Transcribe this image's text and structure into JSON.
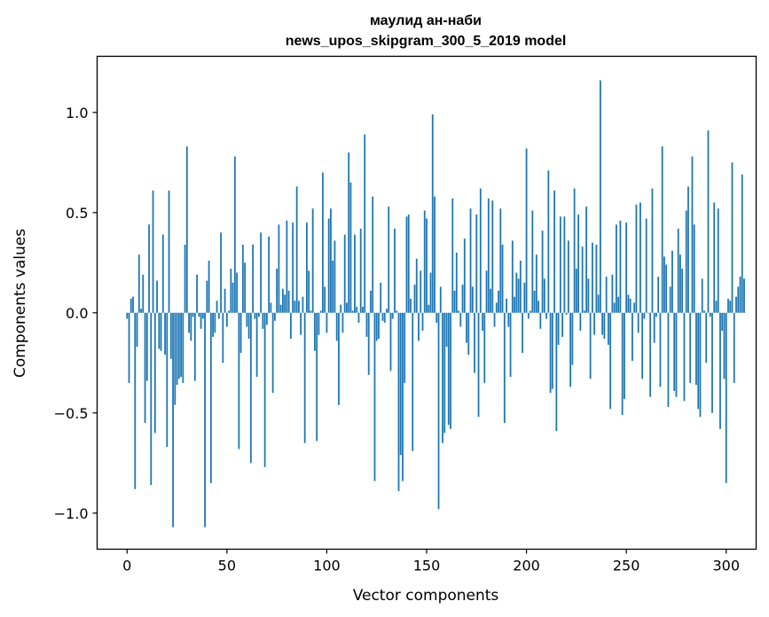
{
  "chart_data": {
    "type": "bar",
    "title": "маулид ан-наби",
    "subtitle": "news_upos_skipgram_300_5_2019 model",
    "xlabel": "Vector components",
    "ylabel": "Components values",
    "xlim": [
      -15,
      315
    ],
    "ylim": [
      -1.18,
      1.28
    ],
    "xticks": [
      0,
      50,
      100,
      150,
      200,
      250,
      300
    ],
    "yticks": [
      -1.0,
      -0.5,
      0.0,
      0.5,
      1.0
    ],
    "ytick_labels": [
      "−1.0",
      "−0.5",
      "0.0",
      "0.5",
      "1.0"
    ],
    "bar_color": "#1f77b4",
    "grid": false,
    "values": [
      -0.03,
      -0.35,
      0.07,
      0.08,
      -0.88,
      -0.17,
      0.29,
      0.02,
      0.19,
      -0.55,
      -0.34,
      0.44,
      -0.86,
      0.61,
      -0.6,
      0.16,
      -0.18,
      -0.19,
      0.39,
      -0.21,
      -0.67,
      0.61,
      -0.23,
      -1.07,
      -0.46,
      -0.36,
      -0.33,
      -0.32,
      -0.35,
      0.34,
      0.83,
      -0.1,
      -0.14,
      -0.02,
      -0.34,
      0.19,
      -0.02,
      -0.08,
      -0.03,
      -1.07,
      0.16,
      0.26,
      -0.85,
      -0.12,
      -0.1,
      0.06,
      -0.03,
      0.4,
      -0.25,
      0.12,
      -0.07,
      0.01,
      0.22,
      0.15,
      0.78,
      0.2,
      -0.68,
      -0.2,
      0.34,
      0.25,
      -0.07,
      -0.13,
      -0.75,
      0.34,
      -0.03,
      -0.32,
      -0.02,
      0.4,
      -0.08,
      -0.77,
      -0.06,
      0.38,
      0.05,
      -0.4,
      -0.04,
      0.22,
      0.44,
      0.04,
      0.12,
      0.09,
      0.46,
      0.11,
      -0.13,
      0.45,
      0.06,
      0.63,
      0.06,
      -0.11,
      0.08,
      -0.65,
      0.45,
      0.21,
      0.01,
      0.52,
      -0.19,
      -0.64,
      -0.11,
      0.01,
      0.7,
      0.13,
      -0.1,
      0.47,
      0.52,
      0.26,
      0.36,
      -0.14,
      -0.46,
      0.04,
      -0.1,
      0.39,
      0.05,
      0.8,
      0.65,
      0.01,
      0.39,
      0.03,
      -0.05,
      0.42,
      0.03,
      0.89,
      -0.12,
      -0.31,
      0.11,
      0.58,
      -0.84,
      -0.14,
      -0.13,
      0.15,
      -0.04,
      -0.05,
      0.02,
      0.53,
      -0.29,
      -0.03,
      0.42,
      0.01,
      -0.89,
      -0.71,
      -0.84,
      -0.35,
      0.48,
      0.49,
      0.07,
      -0.69,
      0.14,
      0.27,
      -0.14,
      0.21,
      -0.09,
      0.51,
      0.47,
      0.04,
      0.2,
      0.99,
      0.58,
      -0.05,
      -0.98,
      0.13,
      -0.65,
      -0.6,
      -0.17,
      -0.56,
      -0.58,
      0.57,
      0.11,
      0.3,
      0.01,
      -0.07,
      0.14,
      0.37,
      -0.15,
      -0.21,
      0.52,
      0.13,
      -0.3,
      0.49,
      -0.52,
      0.62,
      -0.09,
      -0.35,
      0.21,
      0.57,
      0.12,
      0.56,
      -0.07,
      0.05,
      0.11,
      0.52,
      0.34,
      -0.55,
      0.07,
      -0.07,
      -0.32,
      0.36,
      0.08,
      0.2,
      0.17,
      0.26,
      -0.2,
      0.15,
      0.82,
      -0.03,
      0.01,
      0.51,
      0.11,
      0.29,
      0.06,
      -0.08,
      0.41,
      0.17,
      -0.03,
      0.71,
      -0.4,
      -0.38,
      0.61,
      -0.59,
      -0.16,
      0.48,
      -0.12,
      0.48,
      -0.01,
      0.36,
      -0.37,
      -0.26,
      0.62,
      0.22,
      0.49,
      -0.09,
      0.33,
      0.01,
      0.53,
      0.17,
      -0.33,
      0.35,
      -0.11,
      0.34,
      0.09,
      1.16,
      -0.11,
      -0.13,
      0.18,
      -0.16,
      -0.48,
      0.19,
      0.05,
      0.44,
      0.08,
      0.46,
      -0.51,
      -0.43,
      0.45,
      0.09,
      0.07,
      -0.24,
      0.05,
      0.54,
      -0.1,
      0.55,
      -0.33,
      -0.03,
      0.47,
      0.0,
      -0.42,
      0.62,
      -0.15,
      -0.02,
      0.18,
      -0.37,
      0.83,
      0.28,
      0.24,
      -0.47,
      0.13,
      0.31,
      -0.39,
      -0.42,
      0.42,
      0.29,
      0.22,
      -0.44,
      0.51,
      0.63,
      -0.35,
      0.78,
      0.44,
      -0.36,
      -0.48,
      -0.52,
      0.17,
      0.01,
      -0.25,
      0.91,
      -0.02,
      -0.5,
      0.55,
      0.06,
      0.52,
      -0.58,
      -0.09,
      -0.33,
      -0.85,
      0.07,
      0.06,
      0.75,
      -0.35,
      0.08,
      0.13,
      0.18,
      0.69,
      0.17
    ]
  }
}
